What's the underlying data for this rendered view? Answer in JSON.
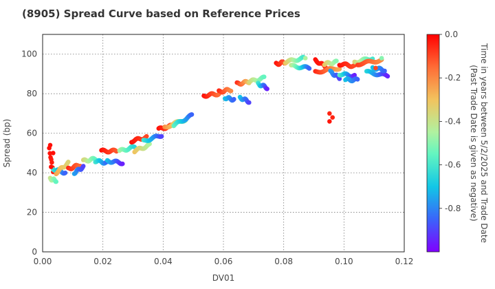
{
  "chart_data": {
    "type": "scatter",
    "title": "(8905)   Spread Curve based on Reference Prices",
    "xlabel": "DV01",
    "ylabel": "Spread (bp)",
    "xlim": [
      0.0,
      0.12
    ],
    "ylim": [
      0,
      110
    ],
    "x_ticks": [
      "0.00",
      "0.02",
      "0.04",
      "0.06",
      "0.08",
      "0.10",
      "0.12"
    ],
    "y_ticks": [
      "0",
      "20",
      "40",
      "60",
      "80",
      "100"
    ],
    "grid": true,
    "colorbar": {
      "label_line1": "Time in years between 5/2/2025 and Trade Date",
      "label_line2": "(Past Trade Date is given as negative)",
      "range": [
        -1.0,
        0.0
      ],
      "ticks": [
        "0.0",
        "-0.2",
        "-0.4",
        "-0.6",
        "-0.8"
      ],
      "colormap": "rainbow"
    },
    "segments": [
      {
        "x0": 0.0025,
        "x1": 0.0045,
        "y0": 37,
        "y1": 36,
        "t0": -0.4,
        "t1": -0.55
      },
      {
        "x0": 0.0022,
        "x1": 0.0035,
        "y0": 52,
        "y1": 41,
        "t0": -0.02,
        "t1": -0.05
      },
      {
        "x0": 0.0035,
        "x1": 0.0075,
        "y0": 42,
        "y1": 40,
        "t0": -0.6,
        "t1": -0.85
      },
      {
        "x0": 0.0045,
        "x1": 0.0085,
        "y0": 40,
        "y1": 45,
        "t0": -0.25,
        "t1": -0.35
      },
      {
        "x0": 0.0085,
        "x1": 0.0125,
        "y0": 42,
        "y1": 44,
        "t0": -0.05,
        "t1": -0.15
      },
      {
        "x0": 0.0105,
        "x1": 0.0135,
        "y0": 40,
        "y1": 43,
        "t0": -0.75,
        "t1": -0.9
      },
      {
        "x0": 0.0135,
        "x1": 0.0175,
        "y0": 46,
        "y1": 47,
        "t0": -0.35,
        "t1": -0.55
      },
      {
        "x0": 0.0175,
        "x1": 0.0215,
        "y0": 46,
        "y1": 45,
        "t0": -0.6,
        "t1": -0.85
      },
      {
        "x0": 0.0195,
        "x1": 0.0245,
        "y0": 51,
        "y1": 51,
        "t0": -0.02,
        "t1": -0.12
      },
      {
        "x0": 0.0215,
        "x1": 0.0265,
        "y0": 46,
        "y1": 45,
        "t0": -0.7,
        "t1": -0.95
      },
      {
        "x0": 0.0255,
        "x1": 0.0305,
        "y0": 51,
        "y1": 53,
        "t0": -0.45,
        "t1": -0.65
      },
      {
        "x0": 0.0295,
        "x1": 0.0345,
        "y0": 56,
        "y1": 58,
        "t0": -0.02,
        "t1": -0.1
      },
      {
        "x0": 0.0305,
        "x1": 0.0355,
        "y0": 51,
        "y1": 54,
        "t0": -0.3,
        "t1": -0.45
      },
      {
        "x0": 0.0335,
        "x1": 0.0395,
        "y0": 56,
        "y1": 59,
        "t0": -0.6,
        "t1": -0.9
      },
      {
        "x0": 0.0385,
        "x1": 0.0435,
        "y0": 62,
        "y1": 64,
        "t0": -0.02,
        "t1": -0.12
      },
      {
        "x0": 0.0405,
        "x1": 0.0475,
        "y0": 63,
        "y1": 67,
        "t0": -0.2,
        "t1": -0.45
      },
      {
        "x0": 0.0435,
        "x1": 0.0495,
        "y0": 64,
        "y1": 69,
        "t0": -0.55,
        "t1": -0.85
      },
      {
        "x0": 0.0535,
        "x1": 0.0585,
        "y0": 79,
        "y1": 80,
        "t0": -0.02,
        "t1": -0.15
      },
      {
        "x0": 0.0585,
        "x1": 0.0625,
        "y0": 81,
        "y1": 82,
        "t0": -0.05,
        "t1": -0.2
      },
      {
        "x0": 0.0605,
        "x1": 0.0635,
        "y0": 78,
        "y1": 77,
        "t0": -0.7,
        "t1": -0.85
      },
      {
        "x0": 0.0645,
        "x1": 0.0685,
        "y0": 85,
        "y1": 86,
        "t0": -0.05,
        "t1": -0.3
      },
      {
        "x0": 0.0655,
        "x1": 0.0685,
        "y0": 78,
        "y1": 76,
        "t0": -0.7,
        "t1": -0.9
      },
      {
        "x0": 0.0685,
        "x1": 0.0735,
        "y0": 86,
        "y1": 88,
        "t0": -0.35,
        "t1": -0.55
      },
      {
        "x0": 0.0715,
        "x1": 0.0745,
        "y0": 85,
        "y1": 83,
        "t0": -0.6,
        "t1": -0.95
      },
      {
        "x0": 0.0775,
        "x1": 0.0805,
        "y0": 95,
        "y1": 96,
        "t0": -0.02,
        "t1": -0.12
      },
      {
        "x0": 0.0805,
        "x1": 0.0865,
        "y0": 96,
        "y1": 98,
        "t0": -0.3,
        "t1": -0.6
      },
      {
        "x0": 0.0825,
        "x1": 0.0885,
        "y0": 94,
        "y1": 93,
        "t0": -0.4,
        "t1": -0.85
      },
      {
        "x0": 0.0905,
        "x1": 0.0945,
        "y0": 97,
        "y1": 93,
        "t0": -0.02,
        "t1": -0.05
      },
      {
        "x0": 0.0905,
        "x1": 0.0985,
        "y0": 91,
        "y1": 93,
        "t0": -0.05,
        "t1": -0.25
      },
      {
        "x0": 0.0935,
        "x1": 0.0975,
        "y0": 95,
        "y1": 96,
        "t0": -0.3,
        "t1": -0.5
      },
      {
        "x0": 0.0955,
        "x1": 0.0985,
        "y0": 91,
        "y1": 88,
        "t0": -0.75,
        "t1": -0.9
      },
      {
        "x0": 0.0985,
        "x1": 0.1035,
        "y0": 95,
        "y1": 94,
        "t0": -0.02,
        "t1": -0.1
      },
      {
        "x0": 0.0985,
        "x1": 0.1035,
        "y0": 90,
        "y1": 89,
        "t0": -0.55,
        "t1": -0.95
      },
      {
        "x0": 0.1005,
        "x1": 0.1045,
        "y0": 87,
        "y1": 87,
        "t0": -0.7,
        "t1": -0.85
      },
      {
        "x0": 0.1035,
        "x1": 0.1095,
        "y0": 96,
        "y1": 98,
        "t0": -0.35,
        "t1": -0.6
      },
      {
        "x0": 0.1075,
        "x1": 0.1145,
        "y0": 91,
        "y1": 89,
        "t0": -0.65,
        "t1": -0.95
      },
      {
        "x0": 0.1045,
        "x1": 0.1125,
        "y0": 95,
        "y1": 97,
        "t0": -0.08,
        "t1": -0.2
      },
      {
        "x0": 0.1095,
        "x1": 0.1135,
        "y0": 93,
        "y1": 92,
        "t0": -0.7,
        "t1": -0.85
      }
    ],
    "points": [
      {
        "x": 0.0025,
        "y": 54,
        "t": -0.02
      },
      {
        "x": 0.0035,
        "y": 50,
        "t": -0.02
      },
      {
        "x": 0.0028,
        "y": 43,
        "t": -0.02
      },
      {
        "x": 0.0952,
        "y": 70,
        "t": -0.05
      },
      {
        "x": 0.0962,
        "y": 68,
        "t": -0.05
      },
      {
        "x": 0.0952,
        "y": 66,
        "t": -0.03
      },
      {
        "x": 0.0872,
        "y": 98,
        "t": -0.45
      },
      {
        "x": 0.1105,
        "y": 93,
        "t": -0.1
      },
      {
        "x": 0.1125,
        "y": 98,
        "t": -0.5
      }
    ]
  }
}
